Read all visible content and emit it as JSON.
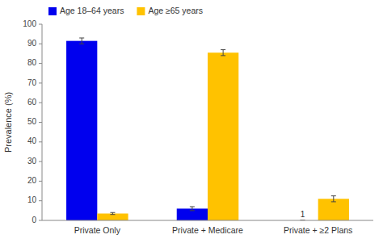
{
  "chart_data": {
    "type": "bar",
    "categories": [
      "Private Only",
      "Private + Medicare",
      "Private + ≥2 Plans"
    ],
    "series": [
      {
        "name": "Age 18–64 years",
        "color": "#0000EE",
        "values": [
          91.5,
          6.0,
          0.0
        ],
        "errors": [
          1.5,
          1.0,
          0.0
        ]
      },
      {
        "name": "Age ≥65 years",
        "color": "#FFC200",
        "values": [
          3.5,
          85.5,
          11.0
        ],
        "errors": [
          0.5,
          1.5,
          1.5
        ]
      }
    ],
    "ylabel": "Prevalence (%)",
    "ylim": [
      0,
      100
    ],
    "yticks": [
      0,
      10,
      20,
      30,
      40,
      50,
      60,
      70,
      80,
      90,
      100
    ],
    "annotations": [
      {
        "text": "1",
        "category": "Private + ≥2 Plans",
        "series": "Age 18–64 years"
      }
    ],
    "grid": false,
    "legend": "upper left"
  }
}
